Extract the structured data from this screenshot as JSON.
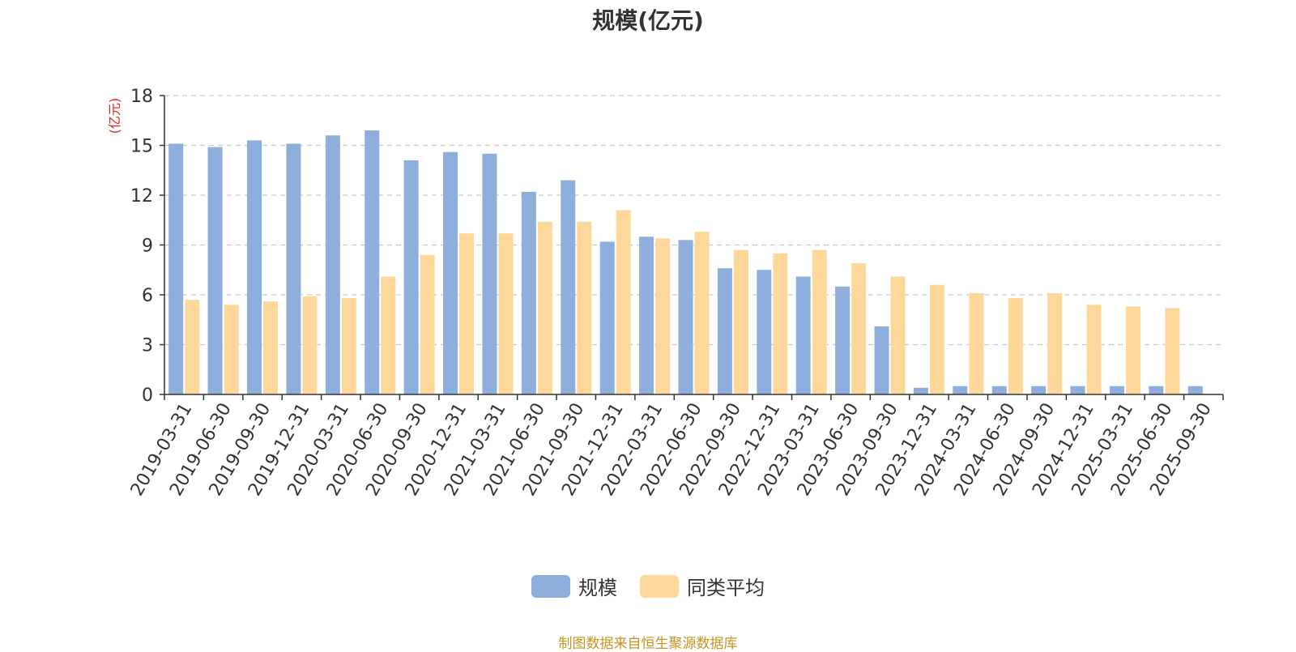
{
  "chart_data": {
    "type": "bar",
    "title": "规模(亿元)",
    "ylabel": "(亿元)",
    "xlabel": "",
    "ylim": [
      0,
      18
    ],
    "yticks": [
      0,
      3,
      6,
      9,
      12,
      15,
      18
    ],
    "grid": true,
    "legend_position": "bottom-center",
    "categories": [
      "2019-03-31",
      "2019-06-30",
      "2019-09-30",
      "2019-12-31",
      "2020-03-31",
      "2020-06-30",
      "2020-09-30",
      "2020-12-31",
      "2021-03-31",
      "2021-06-30",
      "2021-09-30",
      "2021-12-31",
      "2022-03-31",
      "2022-06-30",
      "2022-09-30",
      "2022-12-31",
      "2023-03-31",
      "2023-06-30",
      "2023-09-30",
      "2023-12-31",
      "2024-03-31",
      "2024-06-30",
      "2024-09-30",
      "2024-12-31",
      "2025-03-31",
      "2025-06-30",
      "2025-09-30"
    ],
    "series": [
      {
        "name": "规模",
        "color": "#8eaedb",
        "values": [
          15.1,
          14.9,
          15.3,
          15.1,
          15.6,
          15.9,
          14.1,
          14.6,
          14.5,
          12.2,
          12.9,
          9.2,
          9.5,
          9.3,
          7.6,
          7.5,
          7.1,
          6.5,
          4.1,
          0.4,
          0.5,
          0.5,
          0.5,
          0.5,
          0.5,
          0.5,
          0.5
        ]
      },
      {
        "name": "同类平均",
        "color": "#fed89b",
        "values": [
          5.7,
          5.4,
          5.6,
          5.9,
          5.8,
          7.1,
          8.4,
          9.7,
          9.7,
          10.4,
          10.4,
          11.1,
          9.4,
          9.8,
          8.7,
          8.5,
          8.7,
          7.9,
          7.1,
          6.6,
          6.1,
          5.8,
          6.1,
          5.4,
          5.3,
          5.2,
          null
        ]
      }
    ]
  },
  "footer": {
    "source": "制图数据来自恒生聚源数据库"
  }
}
